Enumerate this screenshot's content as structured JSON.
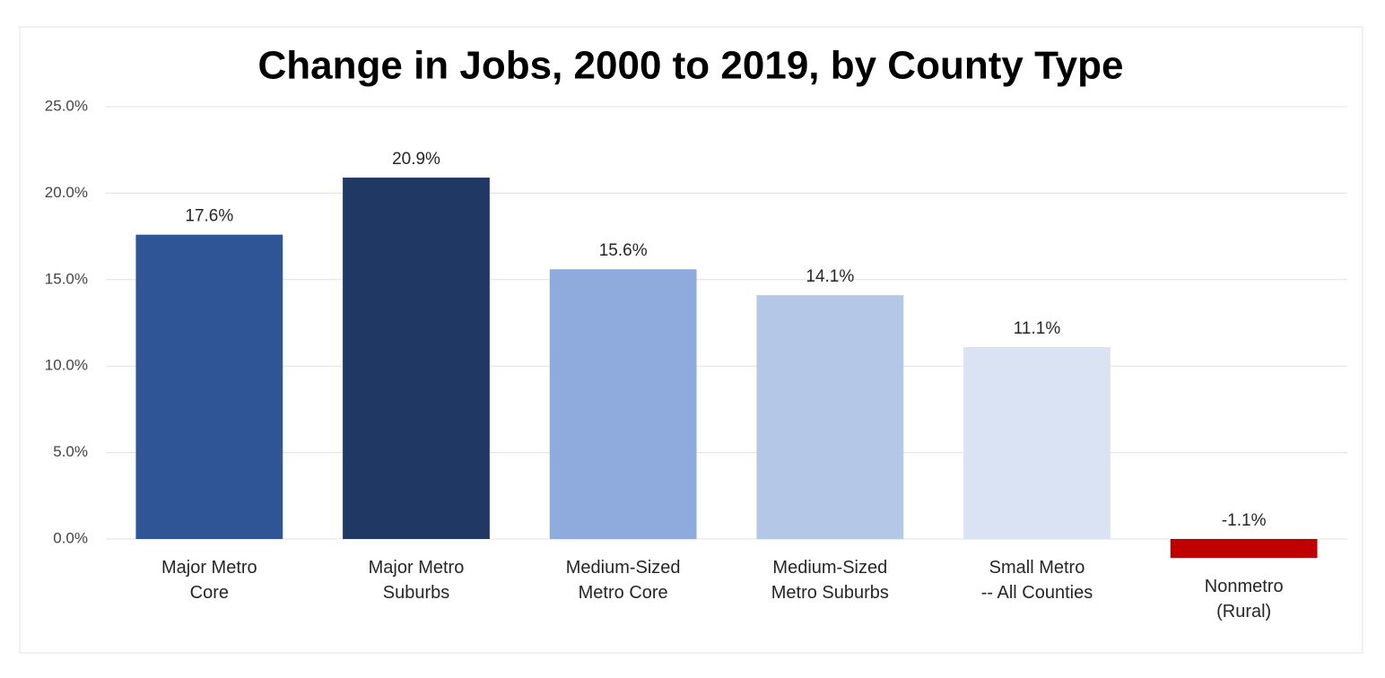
{
  "chart_data": {
    "type": "bar",
    "title": "Change in Jobs, 2000 to 2019, by County Type",
    "categories": [
      "Major Metro\nCore",
      "Major Metro\nSuburbs",
      "Medium-Sized\nMetro Core",
      "Medium-Sized\nMetro Suburbs",
      "Small Metro\n-- All Counties",
      "Nonmetro\n(Rural)"
    ],
    "values": [
      17.6,
      20.9,
      15.6,
      14.1,
      11.1,
      -1.1
    ],
    "value_labels": [
      "17.6%",
      "20.9%",
      "15.6%",
      "14.1%",
      "11.1%",
      "-1.1%"
    ],
    "colors": [
      "#2f5597",
      "#203864",
      "#8faadc",
      "#b4c7e7",
      "#dae3f3",
      "#c00000"
    ],
    "ylim": [
      0,
      25
    ],
    "yticks": [
      {
        "value": 0,
        "label": "0.0%"
      },
      {
        "value": 5,
        "label": "5.0%"
      },
      {
        "value": 10,
        "label": "10.0%"
      },
      {
        "value": 15,
        "label": "15.0%"
      },
      {
        "value": 20,
        "label": "20.0%"
      },
      {
        "value": 25,
        "label": "25.0%"
      }
    ],
    "grid": true
  }
}
